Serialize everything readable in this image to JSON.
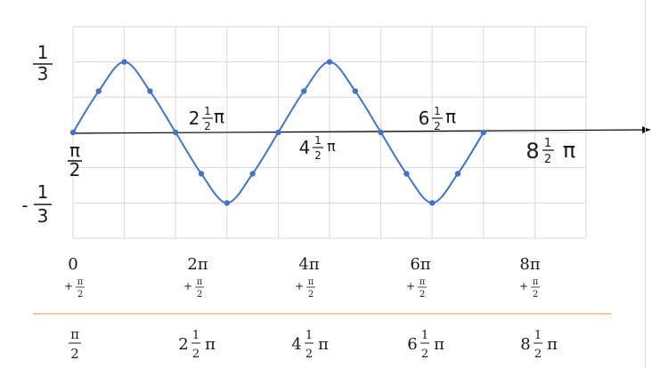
{
  "chart_data": {
    "type": "line",
    "series": [
      {
        "color": "#4472C4",
        "points": [
          [
            0,
            0
          ],
          [
            0.5,
            0.0976
          ],
          [
            1,
            0.1667
          ],
          [
            1.5,
            0.0976
          ],
          [
            2,
            0
          ],
          [
            2.5,
            -0.0976
          ],
          [
            3,
            -0.1667
          ],
          [
            3.5,
            -0.0976
          ],
          [
            4,
            0
          ],
          [
            4.5,
            0.0976
          ],
          [
            5,
            0.1667
          ],
          [
            5.5,
            0.0976
          ],
          [
            6,
            0
          ],
          [
            6.5,
            -0.0976
          ],
          [
            7,
            -0.1667
          ],
          [
            7.5,
            -0.0976
          ],
          [
            8,
            0
          ]
        ]
      }
    ],
    "xlim": [
      0,
      10
    ],
    "ylim": [
      -0.25,
      0.25
    ],
    "grid": true
  },
  "handwritten": {
    "y_top": {
      "num": "1",
      "den": "3"
    },
    "y_bottom": {
      "sign": "-",
      "num": "1",
      "den": "3"
    },
    "origin": {
      "num": "π",
      "den": "2"
    },
    "zero_crossings": [
      {
        "whole": "2",
        "num": "1",
        "den": "2",
        "pi": "π"
      },
      {
        "whole": "4",
        "num": "1",
        "den": "2",
        "pi": "π"
      },
      {
        "whole": "6",
        "num": "1",
        "den": "2",
        "pi": "π"
      },
      {
        "whole": "8",
        "num": "1",
        "den": "2",
        "pi": "π"
      }
    ]
  },
  "tick_row": [
    {
      "main": "0",
      "sub_prefix": "+",
      "sub_num": "π",
      "sub_den": "2"
    },
    {
      "main": "2π",
      "sub_prefix": "+",
      "sub_num": "π",
      "sub_den": "2"
    },
    {
      "main": "4π",
      "sub_prefix": "+",
      "sub_num": "π",
      "sub_den": "2"
    },
    {
      "main": "6π",
      "sub_prefix": "+",
      "sub_num": "π",
      "sub_den": "2"
    },
    {
      "main": "8π",
      "sub_prefix": "+",
      "sub_num": "π",
      "sub_den": "2"
    }
  ],
  "result_row": [
    {
      "whole": "",
      "num": "π",
      "den": "2",
      "pi": ""
    },
    {
      "whole": "2",
      "num": "1",
      "den": "2",
      "pi": "π"
    },
    {
      "whole": "4",
      "num": "1",
      "den": "2",
      "pi": "π"
    },
    {
      "whole": "6",
      "num": "1",
      "den": "2",
      "pi": "π"
    },
    {
      "whole": "8",
      "num": "1",
      "den": "2",
      "pi": "π"
    }
  ],
  "colors": {
    "line": "#4472C4",
    "separator": "#F4B183",
    "grid": "#d9d9d9",
    "axis": "#000000"
  }
}
